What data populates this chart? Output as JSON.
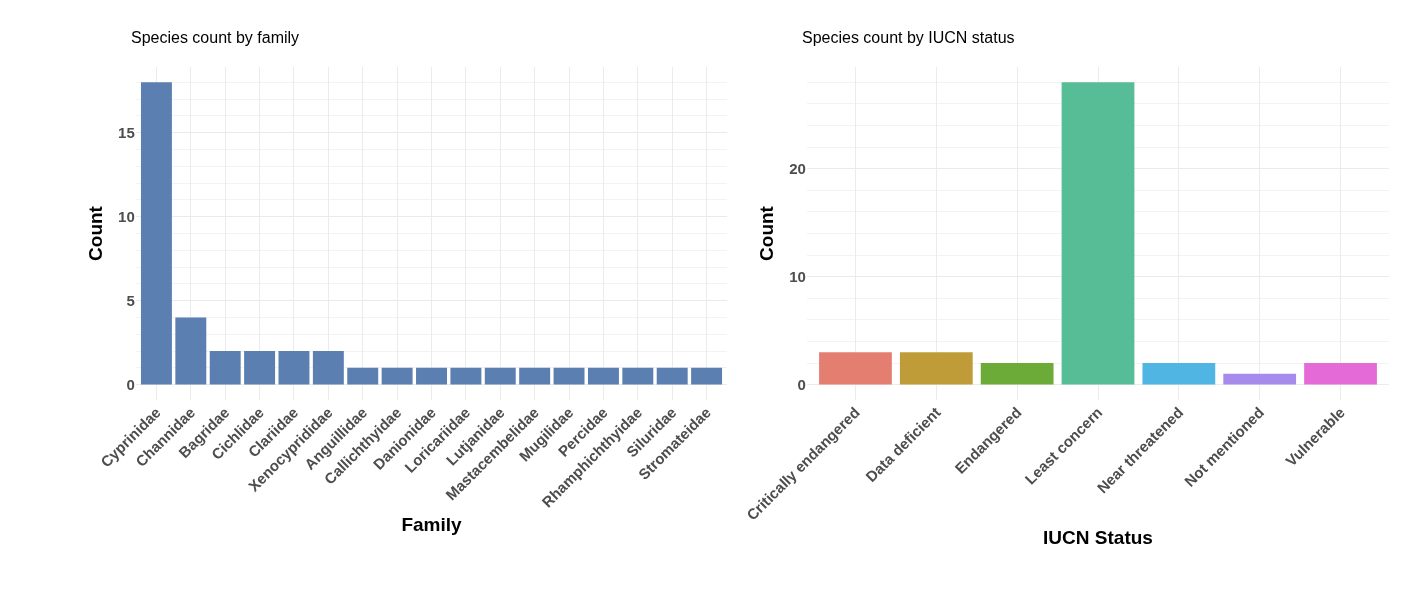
{
  "chart_data": [
    {
      "type": "bar",
      "title": "Species count by family",
      "xlabel": "Family",
      "ylabel": "Count",
      "categories": [
        "Cyprinidae",
        "Channidae",
        "Bagridae",
        "Cichlidae",
        "Clariidae",
        "Xenocyprididae",
        "Anguillidae",
        "Callichthyidae",
        "Danionidae",
        "Loricariidae",
        "Lutjanidae",
        "Mastacembelidae",
        "Mugilidae",
        "Percidae",
        "Rhamphichthyidae",
        "Siluridae",
        "Stromateidae"
      ],
      "values": [
        18,
        4,
        2,
        2,
        2,
        2,
        1,
        1,
        1,
        1,
        1,
        1,
        1,
        1,
        1,
        1,
        1
      ],
      "color": "#5a7fb0",
      "ylim": [
        -0.9,
        18.9
      ],
      "yticks": [
        0,
        5,
        10,
        15
      ],
      "grid": true
    },
    {
      "type": "bar",
      "title": "Species count by IUCN status",
      "xlabel": "IUCN Status",
      "ylabel": "Count",
      "categories": [
        "Critically endangered",
        "Data deficient",
        "Endangered",
        "Least concern",
        "Near threatened",
        "Not mentioned",
        "Vulnerable"
      ],
      "values": [
        3,
        3,
        2,
        28,
        2,
        1,
        2
      ],
      "colors": [
        "#e47e71",
        "#bf9c38",
        "#6cab38",
        "#56bd96",
        "#51b5e3",
        "#a78bec",
        "#e46ad8"
      ],
      "ylim": [
        -1.4,
        29.4
      ],
      "yticks": [
        0,
        10,
        20
      ],
      "grid": true
    }
  ]
}
